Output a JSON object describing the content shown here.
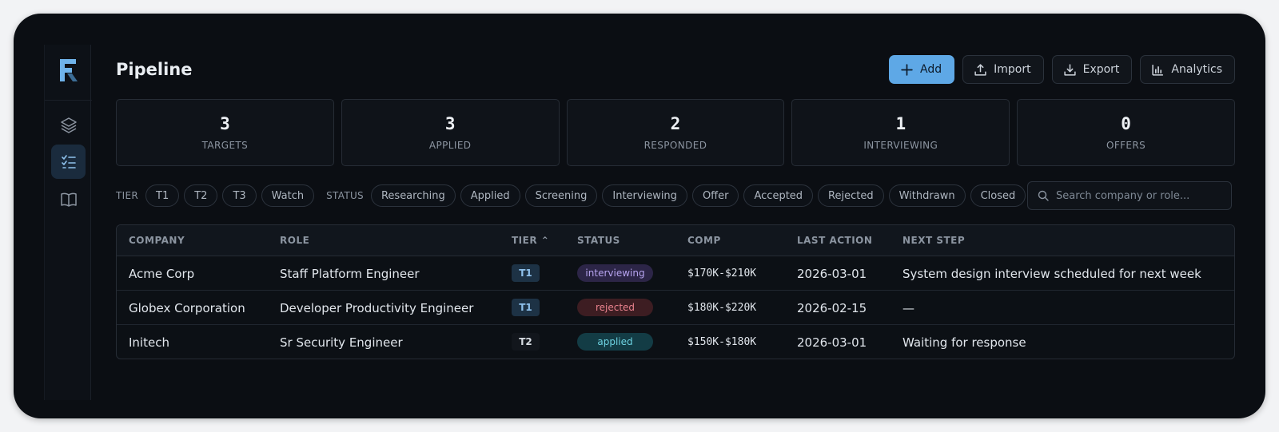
{
  "app": {
    "title": "Pipeline"
  },
  "actions": [
    {
      "label": "Add",
      "icon": "plus-icon",
      "primary": true
    },
    {
      "label": "Import",
      "icon": "upload-icon"
    },
    {
      "label": "Export",
      "icon": "download-icon"
    },
    {
      "label": "Analytics",
      "icon": "bar-chart-icon"
    }
  ],
  "stats": [
    {
      "value": "3",
      "label": "TARGETS"
    },
    {
      "value": "3",
      "label": "APPLIED"
    },
    {
      "value": "2",
      "label": "RESPONDED"
    },
    {
      "value": "1",
      "label": "INTERVIEWING"
    },
    {
      "value": "0",
      "label": "OFFERS"
    }
  ],
  "filters": {
    "tier_label": "TIER",
    "tiers": [
      "T1",
      "T2",
      "T3",
      "Watch"
    ],
    "status_label": "STATUS",
    "statuses": [
      "Researching",
      "Applied",
      "Screening",
      "Interviewing",
      "Offer",
      "Accepted",
      "Rejected",
      "Withdrawn",
      "Closed"
    ],
    "search_placeholder": "Search company or role..."
  },
  "table": {
    "columns": {
      "company": "COMPANY",
      "role": "ROLE",
      "tier": "TIER",
      "status": "STATUS",
      "comp": "COMP",
      "last_action": "LAST ACTION",
      "next_step": "NEXT STEP"
    },
    "rows": [
      {
        "company": "Acme Corp",
        "role": "Staff Platform Engineer",
        "tier": "T1",
        "status": "interviewing",
        "comp": "$170K-$210K",
        "last_action": "2026-03-01",
        "next_step": "System design interview scheduled for next week"
      },
      {
        "company": "Globex Corporation",
        "role": "Developer Productivity Engineer",
        "tier": "T1",
        "status": "rejected",
        "comp": "$180K-$220K",
        "last_action": "2026-02-15",
        "next_step": "—"
      },
      {
        "company": "Initech",
        "role": "Sr Security Engineer",
        "tier": "T2",
        "status": "applied",
        "comp": "$150K-$180K",
        "last_action": "2026-03-01",
        "next_step": "Waiting for response"
      }
    ]
  },
  "colors": {
    "accent": "#5ea8e6",
    "background": "#0b0e13",
    "status_interviewing": "#b7a4f0",
    "status_rejected": "#e9828e",
    "status_applied": "#6ed3e2"
  }
}
